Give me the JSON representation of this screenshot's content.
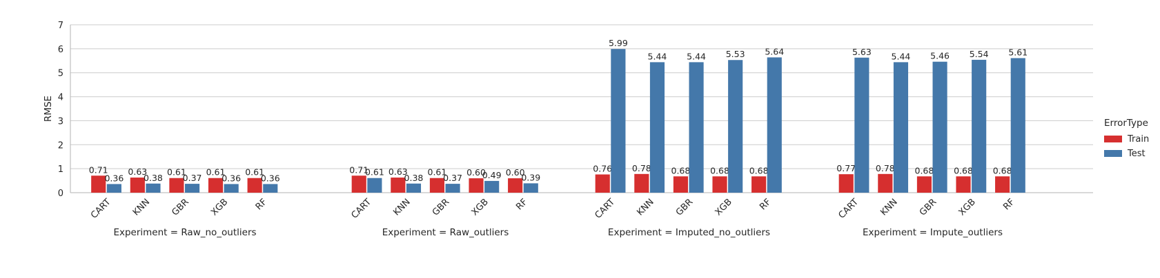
{
  "chart_data": {
    "type": "bar",
    "ylabel": "RMSE",
    "ylim": [
      0,
      7
    ],
    "yticks": [
      0,
      1,
      2,
      3,
      4,
      5,
      6,
      7
    ],
    "grid": "horizontal",
    "legend": {
      "title": "ErrorType",
      "placement": "right",
      "entries": [
        "Train",
        "Test"
      ]
    },
    "colors": {
      "Train": "#d62f2f",
      "Test": "#4478aa"
    },
    "panels": [
      {
        "title": "Experiment = Raw_no_outliers",
        "categories": [
          "CART",
          "KNN",
          "GBR",
          "XGB",
          "RF"
        ],
        "series": [
          {
            "name": "Train",
            "values": [
              0.71,
              0.63,
              0.61,
              0.61,
              0.61
            ],
            "labels": [
              "0.71",
              "0.63",
              "0.61",
              "0.61",
              "0.61"
            ]
          },
          {
            "name": "Test",
            "values": [
              0.36,
              0.38,
              0.37,
              0.36,
              0.36
            ],
            "labels": [
              "0.36",
              "0.38",
              "0.37",
              "0.36",
              "0.36"
            ]
          }
        ]
      },
      {
        "title": "Experiment = Raw_outliers",
        "categories": [
          "CART",
          "KNN",
          "GBR",
          "XGB",
          "RF"
        ],
        "series": [
          {
            "name": "Train",
            "values": [
              0.71,
              0.63,
              0.61,
              0.6,
              0.6
            ],
            "labels": [
              "0.71",
              "0.63",
              "0.61",
              "0.60",
              "0.60"
            ]
          },
          {
            "name": "Test",
            "values": [
              0.61,
              0.38,
              0.37,
              0.49,
              0.39
            ],
            "labels": [
              "0.61",
              "0.38",
              "0.37",
              "0.49",
              "0.39"
            ]
          }
        ]
      },
      {
        "title": "Experiment = Imputed_no_outliers",
        "categories": [
          "CART",
          "KNN",
          "GBR",
          "XGB",
          "RF"
        ],
        "series": [
          {
            "name": "Train",
            "values": [
              0.76,
              0.78,
              0.68,
              0.68,
              0.68
            ],
            "labels": [
              "0.76",
              "0.78",
              "0.68",
              "0.68",
              "0.68"
            ]
          },
          {
            "name": "Test",
            "values": [
              5.99,
              5.44,
              5.44,
              5.53,
              5.64
            ],
            "labels": [
              "5.99",
              "5.44",
              "5.44",
              "5.53",
              "5.64"
            ]
          }
        ]
      },
      {
        "title": "Experiment = Impute_outliers",
        "categories": [
          "CART",
          "KNN",
          "GBR",
          "XGB",
          "RF"
        ],
        "series": [
          {
            "name": "Train",
            "values": [
              0.77,
              0.78,
              0.68,
              0.68,
              0.68
            ],
            "labels": [
              "0.77",
              "0.78",
              "0.68",
              "0.68",
              "0.68"
            ]
          },
          {
            "name": "Test",
            "values": [
              5.63,
              5.44,
              5.46,
              5.54,
              5.61
            ],
            "labels": [
              "5.63",
              "5.44",
              "5.46",
              "5.54",
              "5.61"
            ]
          }
        ]
      }
    ]
  }
}
